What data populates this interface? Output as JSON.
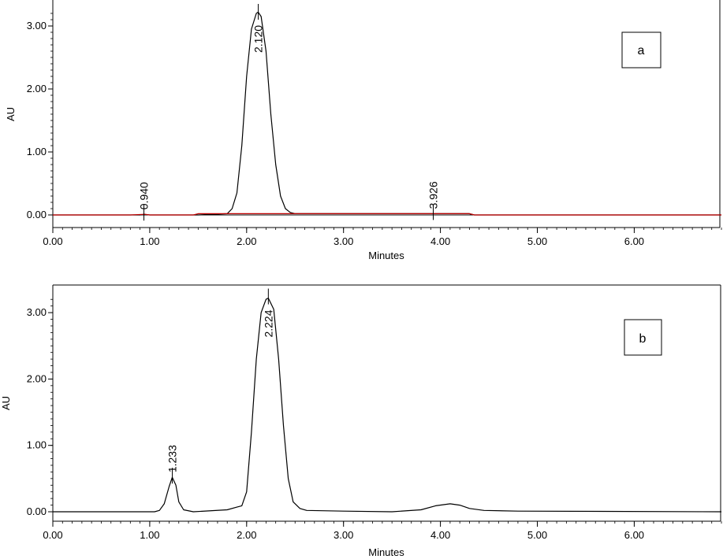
{
  "chart_data": [
    {
      "type": "line",
      "panel_label": "a",
      "xlabel": "Minutes",
      "ylabel": "AU",
      "xlim": [
        0,
        6.9
      ],
      "ylim": [
        -0.2,
        3.35
      ],
      "x_ticks": [
        "0.00",
        "1.00",
        "2.00",
        "3.00",
        "4.00",
        "5.00",
        "6.00"
      ],
      "y_ticks": [
        "0.00",
        "1.00",
        "2.00",
        "3.00"
      ],
      "grid": false,
      "peaks": [
        {
          "label": "0.940",
          "x": 0.94,
          "y": 0.01
        },
        {
          "label": "2.120",
          "x": 2.12,
          "y": 3.2
        },
        {
          "label": "3.926",
          "x": 3.926,
          "y": 0.02
        }
      ],
      "series": [
        {
          "color": "#000000",
          "x": [
            0.0,
            0.9,
            0.94,
            1.0,
            1.5,
            1.8,
            1.85,
            1.9,
            1.95,
            2.0,
            2.05,
            2.1,
            2.12,
            2.15,
            2.2,
            2.25,
            2.3,
            2.35,
            2.4,
            2.45,
            2.5,
            3.0,
            3.9,
            3.926,
            4.3,
            4.35,
            6.9
          ],
          "y": [
            0.0,
            0.0,
            0.01,
            0.0,
            0.0,
            0.02,
            0.1,
            0.35,
            1.1,
            2.2,
            2.95,
            3.2,
            3.22,
            3.15,
            2.6,
            1.6,
            0.8,
            0.3,
            0.1,
            0.04,
            0.02,
            0.02,
            0.02,
            0.02,
            0.02,
            0.0,
            0.0
          ]
        },
        {
          "color": "#c00000",
          "x": [
            0.0,
            0.8,
            0.95,
            1.0,
            1.45,
            1.5,
            1.55,
            4.3,
            4.35,
            6.9
          ],
          "y": [
            0.0,
            0.0,
            0.01,
            0.0,
            0.0,
            0.02,
            0.02,
            0.02,
            0.0,
            0.0
          ]
        }
      ]
    },
    {
      "type": "line",
      "panel_label": "b",
      "xlabel": "Minutes",
      "ylabel": "AU",
      "xlim": [
        0,
        6.9
      ],
      "ylim": [
        -0.15,
        3.35
      ],
      "x_ticks": [
        "0.00",
        "1.00",
        "2.00",
        "3.00",
        "4.00",
        "5.00",
        "6.00"
      ],
      "y_ticks": [
        "0.00",
        "1.00",
        "2.00",
        "3.00"
      ],
      "grid": false,
      "peaks": [
        {
          "label": "1.233",
          "x": 1.233,
          "y": 0.52
        },
        {
          "label": "2.224",
          "x": 2.224,
          "y": 3.22
        }
      ],
      "series": [
        {
          "color": "#000000",
          "x": [
            0.0,
            1.05,
            1.1,
            1.15,
            1.2,
            1.233,
            1.27,
            1.3,
            1.35,
            1.45,
            1.8,
            1.9,
            1.95,
            2.0,
            2.05,
            2.1,
            2.15,
            2.2,
            2.224,
            2.28,
            2.33,
            2.38,
            2.43,
            2.48,
            2.55,
            2.62,
            3.0,
            3.5,
            3.8,
            3.95,
            4.1,
            4.2,
            4.3,
            4.45,
            4.8,
            6.9
          ],
          "y": [
            0.0,
            0.0,
            0.02,
            0.12,
            0.38,
            0.52,
            0.4,
            0.15,
            0.03,
            0.0,
            0.03,
            0.07,
            0.09,
            0.3,
            1.2,
            2.3,
            3.0,
            3.2,
            3.22,
            3.05,
            2.3,
            1.3,
            0.5,
            0.15,
            0.05,
            0.02,
            0.01,
            0.0,
            0.03,
            0.09,
            0.12,
            0.1,
            0.05,
            0.02,
            0.01,
            0.0
          ]
        }
      ]
    }
  ]
}
